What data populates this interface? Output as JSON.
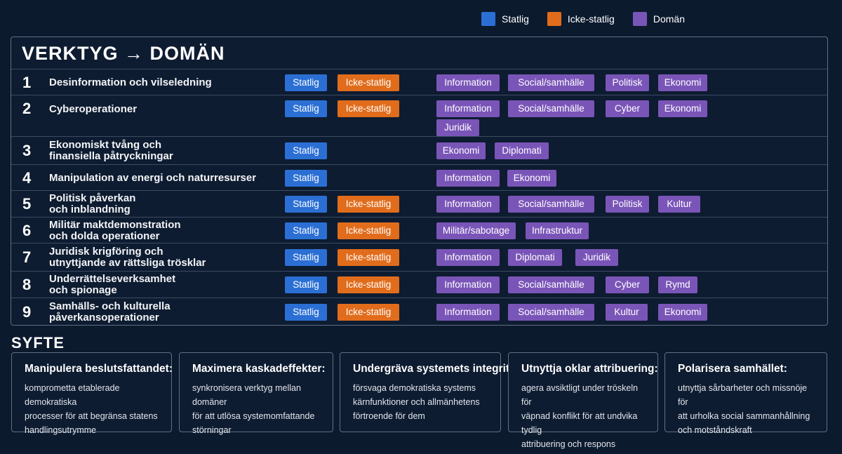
{
  "legend": [
    {
      "label": "Statlig",
      "color": "#2b6fd4"
    },
    {
      "label": "Icke-statlig",
      "color": "#e16d1c"
    },
    {
      "label": "Domän",
      "color": "#7a55b8"
    }
  ],
  "table_title": "VERKTYG → DOMÄN",
  "rows": [
    {
      "num": "1",
      "name_lines": [
        "Desinformation och vilseledning"
      ],
      "actors": [
        "Statlig",
        "Icke-statlig"
      ],
      "domains": [
        "Information",
        "Social/samhälle",
        "Politisk",
        "Ekonomi"
      ]
    },
    {
      "num": "2",
      "name_lines": [
        "Cyberoperationer"
      ],
      "actors": [
        "Statlig",
        "Icke-statlig"
      ],
      "domains": [
        "Information",
        "Social/samhälle",
        "Cyber",
        "Ekonomi",
        "Juridik"
      ]
    },
    {
      "num": "3",
      "name_lines": [
        "Ekonomiskt tvång och",
        "finansiella påtryckningar"
      ],
      "actors": [
        "Statlig"
      ],
      "domains": [
        "Ekonomi",
        "Diplomati"
      ]
    },
    {
      "num": "4",
      "name_lines": [
        "Manipulation av energi och naturresurser"
      ],
      "actors": [
        "Statlig"
      ],
      "domains": [
        "Information",
        "Ekonomi"
      ]
    },
    {
      "num": "5",
      "name_lines": [
        "Politisk påverkan",
        "och inblandning"
      ],
      "actors": [
        "Statlig",
        "Icke-statlig"
      ],
      "domains": [
        "Information",
        "Social/samhälle",
        "Politisk",
        "Kultur"
      ]
    },
    {
      "num": "6",
      "name_lines": [
        "Militär maktdemonstration",
        "och dolda operationer"
      ],
      "actors": [
        "Statlig",
        "Icke-statlig"
      ],
      "domains": [
        "Militär/sabotage",
        "Infrastruktur"
      ]
    },
    {
      "num": "7",
      "name_lines": [
        "Juridisk krigföring och",
        "utnyttjande av rättsliga trösklar"
      ],
      "actors": [
        "Statlig",
        "Icke-statlig"
      ],
      "domains": [
        "Information",
        "Diplomati",
        "Juridik"
      ]
    },
    {
      "num": "8",
      "name_lines": [
        "Underrättelseverksamhet",
        "och spionage"
      ],
      "actors": [
        "Statlig",
        "Icke-statlig"
      ],
      "domains": [
        "Information",
        "Social/samhälle",
        "Cyber",
        "Rymd"
      ]
    },
    {
      "num": "9",
      "name_lines": [
        "Samhälls- och kulturella",
        "påverkansoperationer"
      ],
      "actors": [
        "Statlig",
        "Icke-statlig"
      ],
      "domains": [
        "Information",
        "Social/samhälle",
        "Kultur",
        "Ekonomi"
      ]
    }
  ],
  "syfte_title": "SYFTE",
  "cards": [
    {
      "title": "Manipulera beslutsfattandet:",
      "text_lines": [
        "komprometta etablerade demokratiska",
        "processer för att begränsa statens",
        "handlingsutrymme"
      ]
    },
    {
      "title": "Maximera kaskadeffekter:",
      "text_lines": [
        "synkronisera verktyg mellan domäner",
        "för att utlösa systemomfattande",
        "störningar"
      ]
    },
    {
      "title": "Undergräva systemets integritet:",
      "text_lines": [
        "försvaga demokratiska systems",
        "kärnfunktioner och allmänhetens",
        "förtroende för dem"
      ]
    },
    {
      "title": "Utnyttja oklar attribuering:",
      "text_lines": [
        "agera avsiktligt under tröskeln för",
        "väpnad konflikt för att undvika tydlig",
        "attribuering och respons"
      ]
    },
    {
      "title": "Polarisera samhället:",
      "text_lines": [
        "utnyttja sårbarheter och missnöje för",
        "att urholka social sammanhållning",
        "och motståndskraft"
      ]
    }
  ]
}
